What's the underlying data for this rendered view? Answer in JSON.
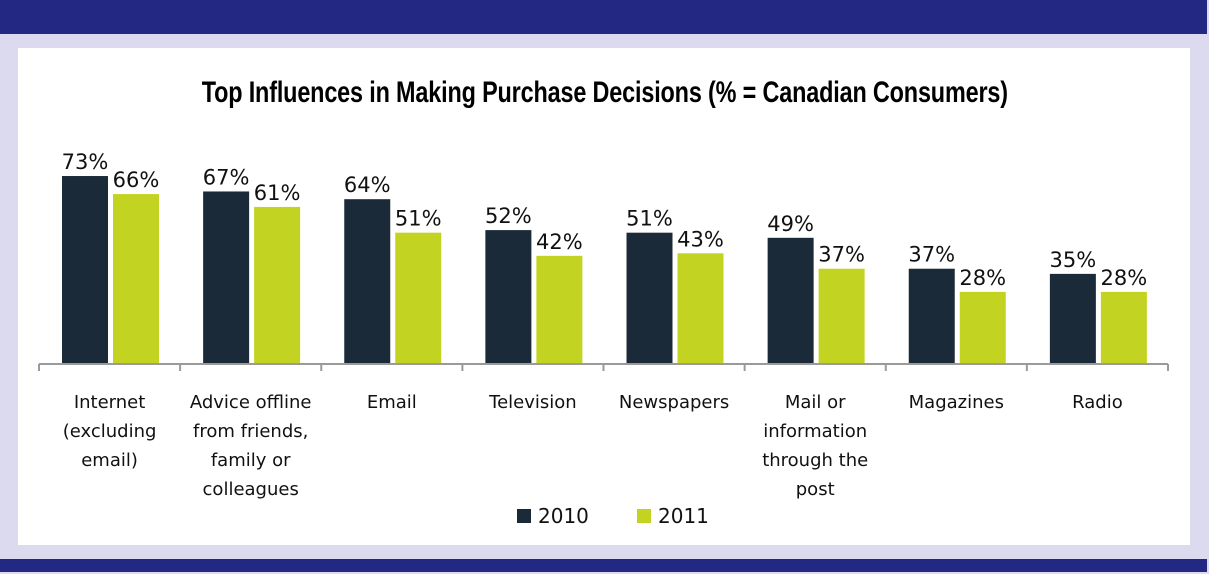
{
  "colors": {
    "frame": "#dcdaee",
    "banner": "#232882",
    "series_2010": "#1b2a38",
    "series_2011": "#c2d421",
    "axis": "#9a9a9a"
  },
  "chart_data": {
    "type": "bar",
    "title": "Top Influences in Making Purchase Decisions (% = Canadian Consumers)",
    "xlabel": "",
    "ylabel": "",
    "ylim": [
      0,
      80
    ],
    "grid": false,
    "legend_position": "bottom",
    "categories": [
      "Internet\n(excluding\nemail)",
      "Advice offline\nfrom friends,\nfamily or\ncolleagues",
      "Email",
      "Television",
      "Newspapers",
      "Mail or\ninformation\nthrough the\npost",
      "Magazines",
      "Radio"
    ],
    "series": [
      {
        "name": "2010",
        "values": [
          73,
          67,
          64,
          52,
          51,
          49,
          37,
          35
        ],
        "labels": [
          "73%",
          "67%",
          "64%",
          "52%",
          "51%",
          "49%",
          "37%",
          "35%"
        ]
      },
      {
        "name": "2011",
        "values": [
          66,
          61,
          51,
          42,
          43,
          37,
          28,
          28
        ],
        "labels": [
          "66%",
          "61%",
          "51%",
          "42%",
          "43%",
          "37%",
          "28%",
          "28%"
        ]
      }
    ]
  }
}
